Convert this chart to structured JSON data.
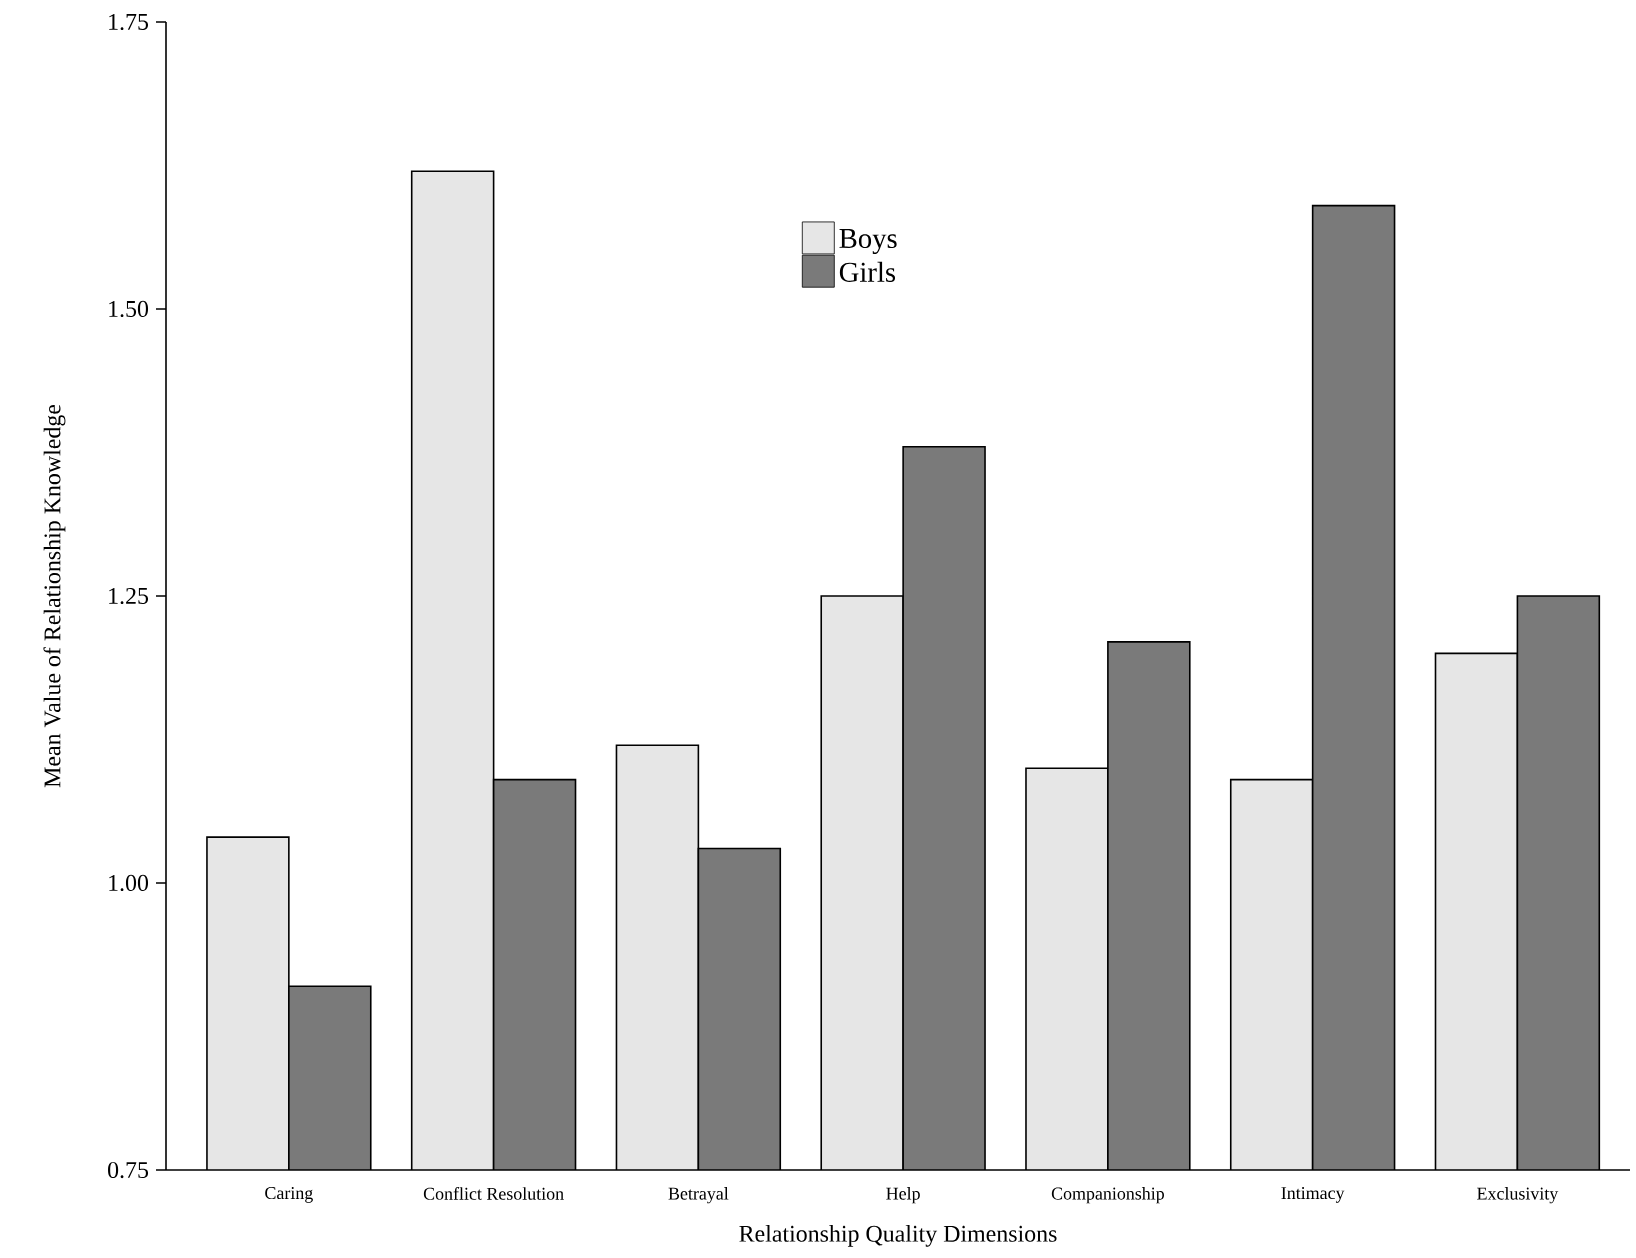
{
  "chart_data": {
    "type": "bar",
    "xlabel": "Relationship Quality Dimensions",
    "ylabel": "Mean Value of Relationship Knowledge",
    "categories": [
      "Caring",
      "Conflict Resolution",
      "Betrayal",
      "Help",
      "Companionship",
      "Intimacy",
      "Exclusivity"
    ],
    "series": [
      {
        "name": "Boys",
        "color": "#e6e6e6",
        "values": [
          1.04,
          1.62,
          1.12,
          1.25,
          1.1,
          1.09,
          1.2
        ]
      },
      {
        "name": "Girls",
        "color": "#7a7a7a",
        "values": [
          0.91,
          1.09,
          1.03,
          1.38,
          1.21,
          1.59,
          1.25
        ]
      }
    ],
    "ylim": [
      0.75,
      1.75
    ],
    "yticks": [
      {
        "value": 0.75,
        "label": "0.75"
      },
      {
        "value": 1.0,
        "label": "1.00"
      },
      {
        "value": 1.25,
        "label": "1.25"
      },
      {
        "value": 1.5,
        "label": "1.50"
      },
      {
        "value": 1.75,
        "label": "1.75"
      }
    ],
    "legend": "top",
    "grid": false
  }
}
